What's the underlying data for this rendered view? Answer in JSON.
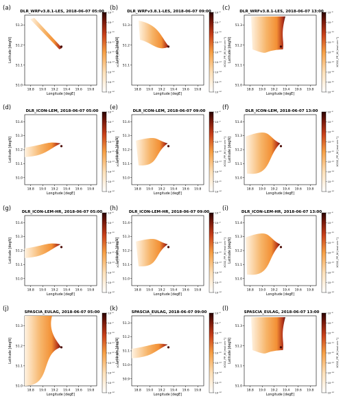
{
  "figure": {
    "xlabel": "Longitude [degE]",
    "ylabel": "Latitude [degN]",
    "cbar_label": "XCO2_PP_M [mol cm⁻²]",
    "cbar_ticks": [
      "10⁻⁸",
      "10⁻⁹",
      "10⁻¹⁰",
      "10⁻¹¹",
      "10⁻¹²",
      "10⁻¹³",
      "10⁻¹⁴",
      "10⁻¹⁵",
      "10⁻¹⁶"
    ],
    "colors": {
      "low": "#fff2e0",
      "mid": "#f28a2a",
      "high": "#4a0a05",
      "edge": "#ffd5a3"
    }
  },
  "chart_data": [
    {
      "type": "heatmap",
      "panel": "(a)",
      "title": "DLR_WRFv3.8.1-LES, 2018-06-07 05:00",
      "xlim": [
        18.7,
        19.9
      ],
      "ylim": [
        51.0,
        51.35
      ],
      "xticks": [
        "18.8",
        "19.0",
        "19.2",
        "19.4",
        "19.6",
        "19.8"
      ],
      "yticks": [
        "51.0",
        "51.1",
        "51.2",
        "51.3"
      ],
      "plume": "narrow diagonal"
    },
    {
      "type": "heatmap",
      "panel": "(b)",
      "title": "DLR_WRFv3.8.1-LES, 2018-06-07 09:00",
      "xlim": [
        18.7,
        19.9
      ],
      "ylim": [
        51.0,
        51.35
      ],
      "xticks": [
        "18.8",
        "19.0",
        "19.2",
        "19.4",
        "19.6",
        "19.8"
      ],
      "yticks": [
        "51.1",
        "51.2",
        "51.3"
      ],
      "plume": "northwest fan"
    },
    {
      "type": "heatmap",
      "panel": "(c)",
      "title": "DLR_WRFv3.8.1-LES, 2018-06-07 13:00",
      "xlim": [
        18.7,
        19.9
      ],
      "ylim": [
        51.0,
        51.35
      ],
      "xticks": [
        "18.8",
        "19.0",
        "19.2",
        "19.4",
        "19.6",
        "19.8"
      ],
      "yticks": [
        "51.0",
        "51.1",
        "51.2",
        "51.3"
      ],
      "plume": "broad northwest"
    },
    {
      "type": "heatmap",
      "panel": "(d)",
      "title": "DLR_ICON-LEM, 2018-06-07 05:00",
      "xlim": [
        18.7,
        19.9
      ],
      "ylim": [
        50.95,
        51.45
      ],
      "xticks": [
        "18.8",
        "19.0",
        "19.2",
        "19.4",
        "19.6",
        "19.8"
      ],
      "yticks": [
        "51.0",
        "51.1",
        "51.2",
        "51.3",
        "51.4"
      ],
      "plume": "westward band"
    },
    {
      "type": "heatmap",
      "panel": "(e)",
      "title": "DLR_ICON-LEM, 2018-06-07 09:00",
      "xlim": [
        18.7,
        19.9
      ],
      "ylim": [
        50.95,
        51.45
      ],
      "xticks": [
        "18.8",
        "19.0",
        "19.2",
        "19.4",
        "19.6",
        "19.8"
      ],
      "yticks": [
        "51.0",
        "51.1",
        "51.2",
        "51.3",
        "51.4"
      ],
      "plume": "westward fan"
    },
    {
      "type": "heatmap",
      "panel": "(f)",
      "title": "DLR_ICON-LEM, 2018-06-07 13:00",
      "xlim": [
        18.7,
        19.9
      ],
      "ylim": [
        50.95,
        51.45
      ],
      "xticks": [
        "18.8",
        "19.0",
        "19.2",
        "19.4",
        "19.6",
        "19.8"
      ],
      "yticks": [
        "51.0",
        "51.1",
        "51.2",
        "51.3",
        "51.4"
      ],
      "plume": "wide westward fan"
    },
    {
      "type": "heatmap",
      "panel": "(g)",
      "title": "DLR_ICON-LEM-HR, 2018-06-07 05:00",
      "xlim": [
        18.7,
        19.9
      ],
      "ylim": [
        50.95,
        51.45
      ],
      "xticks": [
        "18.8",
        "19.0",
        "19.2",
        "19.4",
        "19.6",
        "19.8"
      ],
      "yticks": [
        "51.0",
        "51.1",
        "51.2",
        "51.3",
        "51.4"
      ],
      "plume": "westward band"
    },
    {
      "type": "heatmap",
      "panel": "(h)",
      "title": "DLR_ICON-LEM-HR, 2018-06-07 09:00",
      "xlim": [
        18.7,
        19.9
      ],
      "ylim": [
        50.95,
        51.45
      ],
      "xticks": [
        "18.8",
        "19.0",
        "19.2",
        "19.4",
        "19.6",
        "19.8"
      ],
      "yticks": [
        "51.0",
        "51.1",
        "51.2",
        "51.3",
        "51.4"
      ],
      "plume": "westward fan"
    },
    {
      "type": "heatmap",
      "panel": "(i)",
      "title": "DLR_ICON-LEM-HR, 2018-06-07 13:00",
      "xlim": [
        18.7,
        19.9
      ],
      "ylim": [
        50.95,
        51.45
      ],
      "xticks": [
        "18.8",
        "19.0",
        "19.2",
        "19.4",
        "19.6",
        "19.8"
      ],
      "yticks": [
        "51.0",
        "51.1",
        "51.2",
        "51.3",
        "51.4"
      ],
      "plume": "wide westward fan"
    },
    {
      "type": "heatmap",
      "panel": "(j)",
      "title": "SPASCIA_EULAG, 2018-06-07 05:00",
      "xlim": [
        18.7,
        19.9
      ],
      "ylim": [
        51.0,
        51.35
      ],
      "xticks": [
        "18.8",
        "19.0",
        "19.2",
        "19.4",
        "19.6",
        "19.8"
      ],
      "yticks": [
        "51.0",
        "51.1",
        "51.2",
        "51.3"
      ],
      "plume": "broad west"
    },
    {
      "type": "heatmap",
      "panel": "(k)",
      "title": "SPASCIA_EULAG, 2018-06-07 09:00",
      "xlim": [
        18.7,
        19.9
      ],
      "ylim": [
        50.85,
        51.35
      ],
      "xticks": [
        "18.8",
        "19.0",
        "19.2",
        "19.4",
        "19.6",
        "19.8"
      ],
      "yticks": [
        "50.9",
        "51.0",
        "51.1",
        "51.2",
        "51.3"
      ],
      "plume": "westward band"
    },
    {
      "type": "heatmap",
      "panel": "(l)",
      "title": "SPASCIA_EULAG, 2018-06-07 13:00",
      "xlim": [
        18.7,
        19.9
      ],
      "ylim": [
        51.0,
        51.35
      ],
      "xticks": [
        "18.8",
        "19.0",
        "19.2",
        "19.4",
        "19.6",
        "19.8"
      ],
      "yticks": [
        "51.0",
        "51.1",
        "51.2",
        "51.3"
      ],
      "plume": "broad northwest"
    }
  ]
}
